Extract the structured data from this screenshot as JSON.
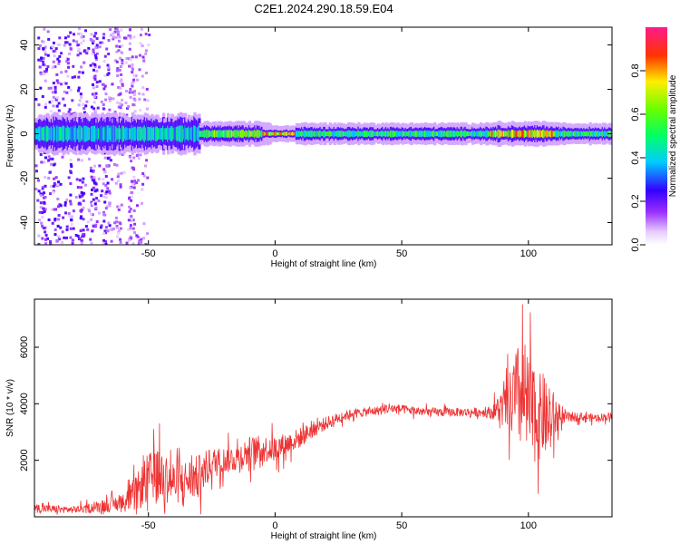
{
  "title": "C2E1.2024.290.18.59.E04",
  "chart_data": [
    {
      "type": "heatmap",
      "xlabel": "Height of straight line (km)",
      "ylabel": "Frequency (Hz)",
      "xlim": [
        -95,
        133
      ],
      "ylim": [
        -50,
        48
      ],
      "x_ticks": [
        -50,
        0,
        50,
        100
      ],
      "y_ticks": [
        -40,
        -20,
        0,
        20,
        40
      ],
      "colorbar": {
        "label": "Normalized spectral amplitude",
        "range": [
          0,
          1
        ],
        "ticks": [
          "0.0",
          "0.2",
          "0.4",
          "0.6",
          "0.8"
        ]
      },
      "bands": [
        {
          "x_range": [
            -95,
            -30
          ],
          "freq_halfwidth": 6,
          "peak_amplitude": 0.5,
          "description_colors": "cyan/green core, blue/purple edges"
        },
        {
          "x_range": [
            -30,
            -2
          ],
          "freq_halfwidth": 3,
          "peak_amplitude": 0.7
        },
        {
          "x_range": [
            -5,
            8
          ],
          "freq_halfwidth": 1.5,
          "peak_amplitude": 0.95
        },
        {
          "x_range": [
            8,
            133
          ],
          "freq_halfwidth": 2.5,
          "peak_amplitude": 0.6
        },
        {
          "x_range": [
            85,
            110
          ],
          "freq_halfwidth": 3,
          "peak_amplitude": 0.9
        }
      ],
      "scatter_spread": {
        "x_range": [
          -95,
          -50
        ],
        "freq_range": [
          -50,
          48
        ]
      }
    },
    {
      "type": "line",
      "xlabel": "Height of straight line (km)",
      "ylabel": "SNR (10 * v/v)",
      "xlim": [
        -95,
        133
      ],
      "ylim": [
        0,
        7700
      ],
      "x_ticks": [
        -50,
        0,
        50,
        100
      ],
      "y_ticks": [
        2000,
        4000,
        6000
      ],
      "series": [
        {
          "color": "#ee3333",
          "x": [
            -95,
            -80,
            -70,
            -60,
            -55,
            -50,
            -45,
            -40,
            -35,
            -30,
            -25,
            -20,
            -15,
            -10,
            -5,
            0,
            5,
            10,
            15,
            20,
            25,
            30,
            35,
            40,
            45,
            50,
            55,
            60,
            65,
            70,
            75,
            80,
            85,
            88,
            92,
            95,
            98,
            100,
            103,
            106,
            108,
            110,
            113,
            120,
            125,
            133
          ],
          "y": [
            300,
            250,
            350,
            500,
            800,
            1400,
            1500,
            1200,
            1300,
            1400,
            1900,
            2000,
            2100,
            2300,
            2400,
            2400,
            2600,
            2800,
            3100,
            3300,
            3500,
            3650,
            3700,
            3750,
            3850,
            3800,
            3750,
            3700,
            3700,
            3700,
            3700,
            3700,
            3700,
            3800,
            3900,
            4200,
            4300,
            3800,
            3500,
            3600,
            3300,
            3500,
            3500,
            3550,
            3500,
            3550
          ],
          "noise_amplitude": [
            200,
            150,
            250,
            400,
            800,
            1100,
            1200,
            1000,
            900,
            1000,
            700,
            600,
            600,
            700,
            600,
            600,
            500,
            450,
            350,
            300,
            250,
            200,
            200,
            200,
            250,
            200,
            200,
            200,
            200,
            200,
            200,
            200,
            250,
            600,
            1200,
            2200,
            2600,
            2400,
            2000,
            1800,
            1500,
            1200,
            300,
            180,
            180,
            180
          ]
        }
      ]
    }
  ]
}
